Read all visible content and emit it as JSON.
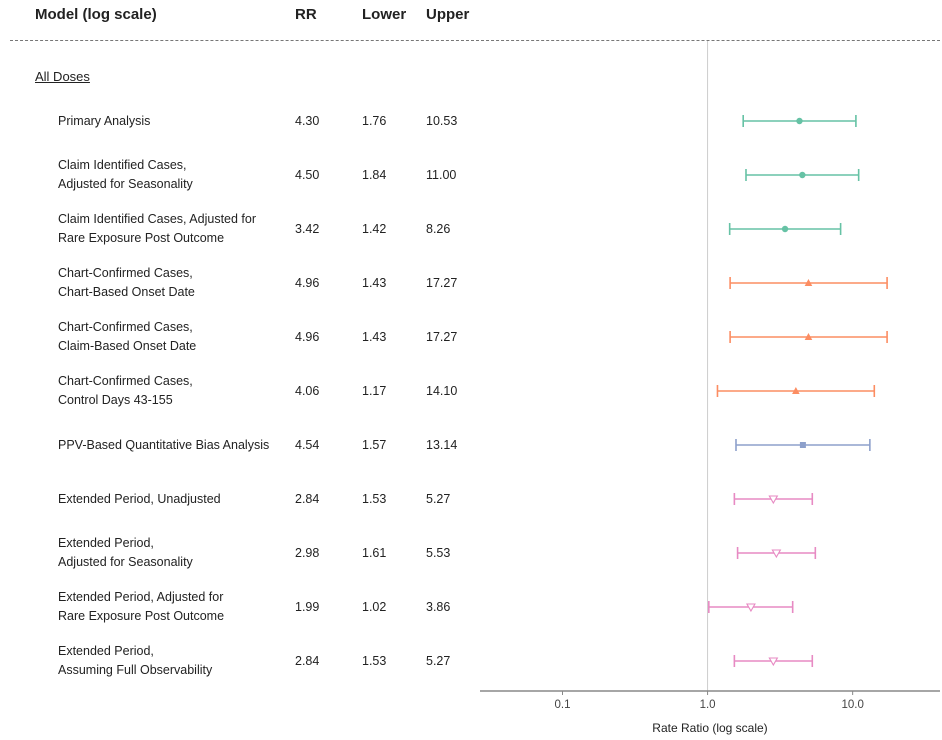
{
  "header": {
    "model_label": "Model (log scale)",
    "rr_label": "RR",
    "lower_label": "Lower",
    "upper_label": "Upper"
  },
  "group_label": "All Doses",
  "rows": [
    {
      "label": "Primary Analysis",
      "rr": "4.30",
      "lower": "1.76",
      "upper": "10.53"
    },
    {
      "label": "Claim Identified Cases,\nAdjusted for Seasonality",
      "rr": "4.50",
      "lower": "1.84",
      "upper": "11.00"
    },
    {
      "label": "Claim Identified Cases, Adjusted for\nRare Exposure Post Outcome",
      "rr": "3.42",
      "lower": "1.42",
      "upper": "8.26"
    },
    {
      "label": "Chart-Confirmed Cases,\nChart-Based Onset Date",
      "rr": "4.96",
      "lower": "1.43",
      "upper": "17.27"
    },
    {
      "label": "Chart-Confirmed Cases,\nClaim-Based Onset Date",
      "rr": "4.96",
      "lower": "1.43",
      "upper": "17.27"
    },
    {
      "label": "Chart-Confirmed Cases,\nControl Days 43-155",
      "rr": "4.06",
      "lower": "1.17",
      "upper": "14.10"
    },
    {
      "label": "PPV-Based Quantitative Bias Analysis",
      "rr": "4.54",
      "lower": "1.57",
      "upper": "13.14"
    },
    {
      "label": "Extended Period, Unadjusted",
      "rr": "2.84",
      "lower": "1.53",
      "upper": "5.27"
    },
    {
      "label": "Extended Period,\nAdjusted for Seasonality",
      "rr": "2.98",
      "lower": "1.61",
      "upper": "5.53"
    },
    {
      "label": "Extended Period, Adjusted for\nRare Exposure Post Outcome",
      "rr": "1.99",
      "lower": "1.02",
      "upper": "3.86"
    },
    {
      "label": "Extended Period,\nAssuming Full Observability",
      "rr": "2.84",
      "lower": "1.53",
      "upper": "5.27"
    }
  ],
  "chart_data": {
    "type": "forest",
    "xlabel": "Rate Ratio (log scale)",
    "x_scale": "log",
    "xlim": [
      0.027,
      40
    ],
    "ticks": [
      0.1,
      1.0,
      10.0
    ],
    "tick_labels": [
      "0.1",
      "1.0",
      "10.0"
    ],
    "reference_line": 1.0,
    "points": [
      {
        "rr": 4.3,
        "lower": 1.76,
        "upper": 10.53,
        "color": "#66c2a5",
        "marker": "circle"
      },
      {
        "rr": 4.5,
        "lower": 1.84,
        "upper": 11.0,
        "color": "#66c2a5",
        "marker": "circle"
      },
      {
        "rr": 3.42,
        "lower": 1.42,
        "upper": 8.26,
        "color": "#66c2a5",
        "marker": "circle"
      },
      {
        "rr": 4.96,
        "lower": 1.43,
        "upper": 17.27,
        "color": "#fc8d62",
        "marker": "triangle-up"
      },
      {
        "rr": 4.96,
        "lower": 1.43,
        "upper": 17.27,
        "color": "#fc8d62",
        "marker": "triangle-up"
      },
      {
        "rr": 4.06,
        "lower": 1.17,
        "upper": 14.1,
        "color": "#fc8d62",
        "marker": "triangle-up"
      },
      {
        "rr": 4.54,
        "lower": 1.57,
        "upper": 13.14,
        "color": "#8da0cb",
        "marker": "square"
      },
      {
        "rr": 2.84,
        "lower": 1.53,
        "upper": 5.27,
        "color": "#e78ac3",
        "marker": "triangle-down-open"
      },
      {
        "rr": 2.98,
        "lower": 1.61,
        "upper": 5.53,
        "color": "#e78ac3",
        "marker": "triangle-down-open"
      },
      {
        "rr": 1.99,
        "lower": 1.02,
        "upper": 3.86,
        "color": "#e78ac3",
        "marker": "triangle-down-open"
      },
      {
        "rr": 2.84,
        "lower": 1.53,
        "upper": 5.27,
        "color": "#e78ac3",
        "marker": "triangle-down-open"
      }
    ]
  }
}
